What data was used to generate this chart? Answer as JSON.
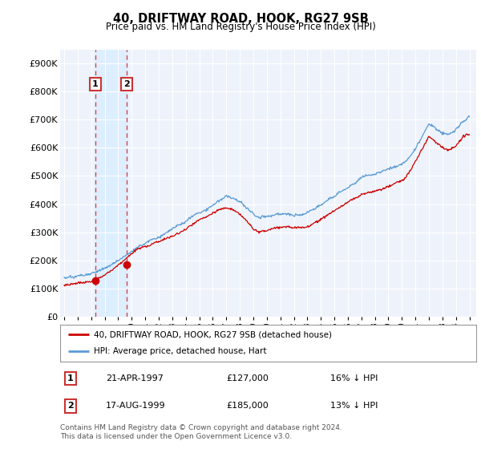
{
  "title": "40, DRIFTWAY ROAD, HOOK, RG27 9SB",
  "subtitle": "Price paid vs. HM Land Registry's House Price Index (HPI)",
  "ylim": [
    0,
    950000
  ],
  "yticks": [
    0,
    100000,
    200000,
    300000,
    400000,
    500000,
    600000,
    700000,
    800000,
    900000
  ],
  "ytick_labels": [
    "£0",
    "£100K",
    "£200K",
    "£300K",
    "£400K",
    "£500K",
    "£600K",
    "£700K",
    "£800K",
    "£900K"
  ],
  "transactions": [
    {
      "date_num": 1997.31,
      "price": 127000,
      "label": "1",
      "pct": "16% ↓ HPI",
      "date_str": "21-APR-1997"
    },
    {
      "date_num": 1999.63,
      "price": 185000,
      "label": "2",
      "pct": "13% ↓ HPI",
      "date_str": "17-AUG-1999"
    }
  ],
  "hpi_color": "#5b9bd5",
  "price_color": "#cc0000",
  "vline_color": "#cc3333",
  "span_color": "#ddeeff",
  "background_color": "#eef3fb",
  "grid_color": "#ffffff",
  "legend_label_price": "40, DRIFTWAY ROAD, HOOK, RG27 9SB (detached house)",
  "legend_label_hpi": "HPI: Average price, detached house, Hart",
  "footnote": "Contains HM Land Registry data © Crown copyright and database right 2024.\nThis data is licensed under the Open Government Licence v3.0.",
  "xlim": [
    1994.7,
    2025.5
  ],
  "xticks": [
    1995,
    1996,
    1997,
    1998,
    1999,
    2000,
    2001,
    2002,
    2003,
    2004,
    2005,
    2006,
    2007,
    2008,
    2009,
    2010,
    2011,
    2012,
    2013,
    2014,
    2015,
    2016,
    2017,
    2018,
    2019,
    2020,
    2021,
    2022,
    2023,
    2024,
    2025
  ],
  "hpi_anchors_x": [
    1995.0,
    1995.5,
    1996.0,
    1996.5,
    1997.0,
    1997.5,
    1998.0,
    1998.5,
    1999.0,
    1999.5,
    2000.0,
    2000.5,
    2001.0,
    2001.5,
    2002.0,
    2002.5,
    2003.0,
    2003.5,
    2004.0,
    2004.5,
    2005.0,
    2005.5,
    2006.0,
    2006.5,
    2007.0,
    2007.5,
    2008.0,
    2008.5,
    2009.0,
    2009.5,
    2010.0,
    2010.5,
    2011.0,
    2011.5,
    2012.0,
    2012.5,
    2013.0,
    2013.5,
    2014.0,
    2014.5,
    2015.0,
    2015.5,
    2016.0,
    2016.5,
    2017.0,
    2017.5,
    2018.0,
    2018.5,
    2019.0,
    2019.5,
    2020.0,
    2020.5,
    2021.0,
    2021.5,
    2022.0,
    2022.5,
    2023.0,
    2023.5,
    2024.0,
    2024.5,
    2025.0
  ],
  "hpi_anchors_y": [
    138000,
    143000,
    148000,
    153000,
    158000,
    165000,
    172000,
    185000,
    198000,
    215000,
    232000,
    248000,
    260000,
    272000,
    280000,
    293000,
    305000,
    318000,
    332000,
    348000,
    362000,
    376000,
    390000,
    406000,
    422000,
    415000,
    400000,
    378000,
    355000,
    348000,
    352000,
    358000,
    362000,
    365000,
    358000,
    362000,
    368000,
    378000,
    392000,
    408000,
    422000,
    438000,
    455000,
    472000,
    488000,
    496000,
    505000,
    512000,
    518000,
    525000,
    532000,
    555000,
    590000,
    635000,
    680000,
    665000,
    650000,
    645000,
    660000,
    690000,
    710000
  ],
  "price_anchors_x": [
    1995.0,
    1995.5,
    1996.0,
    1996.5,
    1997.0,
    1997.5,
    1998.0,
    1998.5,
    1999.0,
    1999.5,
    2000.0,
    2000.5,
    2001.0,
    2001.5,
    2002.0,
    2002.5,
    2003.0,
    2003.5,
    2004.0,
    2004.5,
    2005.0,
    2005.5,
    2006.0,
    2006.5,
    2007.0,
    2007.5,
    2008.0,
    2008.5,
    2009.0,
    2009.5,
    2010.0,
    2010.5,
    2011.0,
    2011.5,
    2012.0,
    2012.5,
    2013.0,
    2013.5,
    2014.0,
    2014.5,
    2015.0,
    2015.5,
    2016.0,
    2016.5,
    2017.0,
    2017.5,
    2018.0,
    2018.5,
    2019.0,
    2019.5,
    2020.0,
    2020.5,
    2021.0,
    2021.5,
    2022.0,
    2022.5,
    2023.0,
    2023.5,
    2024.0,
    2024.5,
    2025.0
  ],
  "price_anchors_y": [
    112000,
    116000,
    120000,
    124000,
    127000,
    138000,
    150000,
    165000,
    180000,
    200000,
    218000,
    235000,
    248000,
    258000,
    265000,
    275000,
    283000,
    296000,
    310000,
    326000,
    340000,
    352000,
    362000,
    375000,
    385000,
    375000,
    358000,
    338000,
    308000,
    298000,
    305000,
    312000,
    318000,
    322000,
    315000,
    318000,
    325000,
    336000,
    350000,
    368000,
    382000,
    396000,
    412000,
    428000,
    442000,
    450000,
    458000,
    465000,
    470000,
    478000,
    485000,
    510000,
    550000,
    595000,
    640000,
    618000,
    600000,
    592000,
    610000,
    640000,
    650000
  ]
}
